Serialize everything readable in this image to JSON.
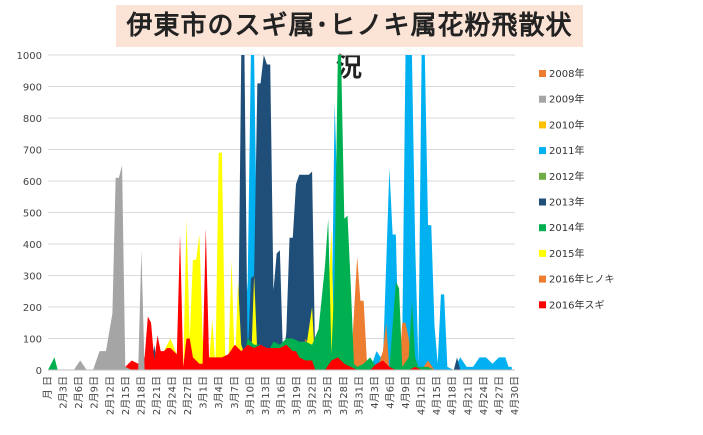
{
  "title": "伊東市のスギ属･ヒノキ属花粉飛散状況",
  "chart_data": {
    "type": "area",
    "title": "伊東市のスギ属･ヒノキ属花粉飛散状況",
    "xlabel": "",
    "ylabel": "",
    "ylim": [
      0,
      1000
    ],
    "yticks": [
      0,
      100,
      200,
      300,
      400,
      500,
      600,
      700,
      800,
      900,
      1000
    ],
    "x_tick_labels": [
      "月 日",
      "2月3日",
      "2月6日",
      "2月9日",
      "2月12日",
      "2月15日",
      "2月18日",
      "2月21日",
      "2月24日",
      "2月27日",
      "3月1日",
      "3月4日",
      "3月7日",
      "3月10日",
      "3月13日",
      "3月16日",
      "3月19日",
      "3月22日",
      "3月25日",
      "3月28日",
      "3月31日",
      "4月3日",
      "4月6日",
      "4月9日",
      "4月12日",
      "4月15日",
      "4月18日",
      "4月21日",
      "4月24日",
      "4月27日",
      "4月30日"
    ],
    "legend_position": "right",
    "grid": true,
    "series": [
      {
        "name": "2011年",
        "color": "#00b0f0",
        "points": [
          [
            46,
            0
          ],
          [
            50,
            10
          ],
          [
            52,
            5
          ],
          [
            56,
            0
          ],
          [
            60,
            0
          ],
          [
            62,
            280
          ],
          [
            63,
            1000
          ],
          [
            64,
            1000
          ],
          [
            65,
            300
          ],
          [
            66,
            0
          ],
          [
            68,
            0
          ],
          [
            70,
            260
          ],
          [
            71,
            280
          ],
          [
            72,
            80
          ],
          [
            74,
            0
          ],
          [
            76,
            0
          ],
          [
            78,
            60
          ],
          [
            80,
            80
          ],
          [
            82,
            0
          ],
          [
            84,
            100
          ],
          [
            86,
            180
          ],
          [
            88,
            60
          ],
          [
            89,
            850
          ],
          [
            90,
            500
          ],
          [
            91,
            80
          ],
          [
            92,
            0
          ],
          [
            94,
            0
          ],
          [
            96,
            30
          ],
          [
            98,
            40
          ],
          [
            100,
            0
          ],
          [
            102,
            60
          ],
          [
            104,
            30
          ],
          [
            106,
            640
          ],
          [
            107,
            430
          ],
          [
            108,
            430
          ],
          [
            109,
            10
          ],
          [
            110,
            100
          ],
          [
            111,
            1000
          ],
          [
            112,
            1000
          ],
          [
            113,
            1000
          ],
          [
            114,
            400
          ],
          [
            115,
            20
          ],
          [
            116,
            1000
          ],
          [
            117,
            1000
          ],
          [
            118,
            460
          ],
          [
            119,
            460
          ],
          [
            120,
            140
          ],
          [
            121,
            20
          ],
          [
            122,
            240
          ],
          [
            123,
            240
          ],
          [
            124,
            10
          ],
          [
            126,
            0
          ],
          [
            128,
            40
          ],
          [
            130,
            10
          ],
          [
            132,
            10
          ],
          [
            134,
            40
          ],
          [
            136,
            40
          ],
          [
            138,
            20
          ],
          [
            140,
            40
          ],
          [
            142,
            40
          ],
          [
            143,
            10
          ],
          [
            144,
            10
          ]
        ]
      },
      {
        "name": "2013年",
        "color": "#1f4e79",
        "points": [
          [
            16,
            0
          ],
          [
            17,
            30
          ],
          [
            18,
            0
          ],
          [
            32,
            0
          ],
          [
            33,
            80
          ],
          [
            34,
            0
          ],
          [
            42,
            0
          ],
          [
            43,
            210
          ],
          [
            44,
            0
          ],
          [
            58,
            0
          ],
          [
            59,
            50
          ],
          [
            60,
            1000
          ],
          [
            61,
            1000
          ],
          [
            62,
            30
          ],
          [
            63,
            290
          ],
          [
            64,
            300
          ],
          [
            65,
            910
          ],
          [
            66,
            910
          ],
          [
            67,
            1000
          ],
          [
            68,
            970
          ],
          [
            69,
            970
          ],
          [
            70,
            250
          ],
          [
            71,
            370
          ],
          [
            72,
            380
          ],
          [
            73,
            30
          ],
          [
            74,
            120
          ],
          [
            75,
            420
          ],
          [
            76,
            420
          ],
          [
            77,
            590
          ],
          [
            78,
            620
          ],
          [
            79,
            620
          ],
          [
            80,
            620
          ],
          [
            81,
            620
          ],
          [
            82,
            630
          ],
          [
            83,
            0
          ],
          [
            86,
            0
          ],
          [
            87,
            0
          ],
          [
            126,
            0
          ],
          [
            127,
            40
          ],
          [
            128,
            0
          ]
        ]
      },
      {
        "name": "2016年ヒノキ",
        "color": "#ed7d31",
        "points": [
          [
            62,
            0
          ],
          [
            63,
            40
          ],
          [
            64,
            0
          ],
          [
            70,
            0
          ],
          [
            71,
            40
          ],
          [
            72,
            0
          ],
          [
            76,
            0
          ],
          [
            78,
            30
          ],
          [
            80,
            100
          ],
          [
            81,
            70
          ],
          [
            82,
            70
          ],
          [
            84,
            90
          ],
          [
            85,
            30
          ],
          [
            86,
            40
          ],
          [
            88,
            0
          ],
          [
            90,
            0
          ],
          [
            92,
            40
          ],
          [
            94,
            0
          ],
          [
            95,
            180
          ],
          [
            96,
            360
          ],
          [
            97,
            220
          ],
          [
            98,
            220
          ],
          [
            99,
            30
          ],
          [
            100,
            0
          ],
          [
            102,
            0
          ],
          [
            104,
            60
          ],
          [
            105,
            150
          ],
          [
            106,
            0
          ],
          [
            107,
            60
          ],
          [
            108,
            70
          ],
          [
            109,
            0
          ],
          [
            110,
            150
          ],
          [
            111,
            150
          ],
          [
            112,
            100
          ],
          [
            113,
            20
          ],
          [
            114,
            0
          ],
          [
            116,
            0
          ],
          [
            118,
            30
          ],
          [
            120,
            0
          ]
        ]
      },
      {
        "name": "2015年",
        "color": "#ffff00",
        "points": [
          [
            20,
            0
          ],
          [
            22,
            10
          ],
          [
            24,
            5
          ],
          [
            26,
            0
          ],
          [
            28,
            0
          ],
          [
            30,
            20
          ],
          [
            32,
            0
          ],
          [
            34,
            0
          ],
          [
            36,
            60
          ],
          [
            38,
            100
          ],
          [
            40,
            50
          ],
          [
            42,
            0
          ],
          [
            43,
            480
          ],
          [
            44,
            100
          ],
          [
            45,
            350
          ],
          [
            46,
            350
          ],
          [
            47,
            430
          ],
          [
            48,
            100
          ],
          [
            50,
            20
          ],
          [
            51,
            160
          ],
          [
            52,
            10
          ],
          [
            53,
            690
          ],
          [
            54,
            690
          ],
          [
            55,
            50
          ],
          [
            56,
            20
          ],
          [
            57,
            350
          ],
          [
            58,
            0
          ],
          [
            59,
            280
          ],
          [
            60,
            80
          ],
          [
            62,
            20
          ],
          [
            63,
            0
          ],
          [
            64,
            300
          ],
          [
            65,
            50
          ],
          [
            66,
            30
          ],
          [
            68,
            40
          ],
          [
            70,
            40
          ],
          [
            72,
            30
          ],
          [
            74,
            40
          ],
          [
            76,
            50
          ],
          [
            78,
            50
          ],
          [
            80,
            60
          ],
          [
            82,
            200
          ],
          [
            83,
            0
          ],
          [
            86,
            0
          ],
          [
            88,
            450
          ],
          [
            89,
            20
          ],
          [
            90,
            0
          ],
          [
            92,
            30
          ],
          [
            94,
            0
          ]
        ]
      },
      {
        "name": "2014年",
        "color": "#00b050",
        "points": [
          [
            0,
            0
          ],
          [
            2,
            40
          ],
          [
            3,
            0
          ],
          [
            16,
            0
          ],
          [
            18,
            20
          ],
          [
            20,
            0
          ],
          [
            60,
            0
          ],
          [
            62,
            100
          ],
          [
            64,
            80
          ],
          [
            66,
            80
          ],
          [
            68,
            50
          ],
          [
            70,
            90
          ],
          [
            72,
            80
          ],
          [
            74,
            100
          ],
          [
            76,
            100
          ],
          [
            78,
            90
          ],
          [
            80,
            90
          ],
          [
            82,
            80
          ],
          [
            84,
            130
          ],
          [
            86,
            330
          ],
          [
            87,
            480
          ],
          [
            88,
            50
          ],
          [
            89,
            300
          ],
          [
            90,
            1000
          ],
          [
            91,
            1000
          ],
          [
            92,
            480
          ],
          [
            93,
            490
          ],
          [
            94,
            270
          ],
          [
            95,
            20
          ],
          [
            96,
            10
          ],
          [
            98,
            20
          ],
          [
            100,
            40
          ],
          [
            102,
            10
          ],
          [
            104,
            20
          ],
          [
            106,
            0
          ],
          [
            108,
            280
          ],
          [
            109,
            260
          ],
          [
            110,
            10
          ],
          [
            112,
            40
          ],
          [
            113,
            220
          ],
          [
            114,
            40
          ],
          [
            115,
            10
          ],
          [
            118,
            10
          ],
          [
            120,
            0
          ]
        ]
      },
      {
        "name": "2016年スギ",
        "color": "#ff0000",
        "points": [
          [
            20,
            0
          ],
          [
            22,
            40
          ],
          [
            24,
            10
          ],
          [
            26,
            30
          ],
          [
            28,
            20
          ],
          [
            30,
            40
          ],
          [
            31,
            170
          ],
          [
            32,
            150
          ],
          [
            33,
            30
          ],
          [
            34,
            110
          ],
          [
            35,
            60
          ],
          [
            36,
            60
          ],
          [
            37,
            70
          ],
          [
            38,
            70
          ],
          [
            40,
            50
          ],
          [
            41,
            430
          ],
          [
            42,
            10
          ],
          [
            43,
            100
          ],
          [
            44,
            100
          ],
          [
            45,
            40
          ],
          [
            46,
            30
          ],
          [
            47,
            20
          ],
          [
            48,
            20
          ],
          [
            49,
            450
          ],
          [
            50,
            40
          ],
          [
            52,
            40
          ],
          [
            54,
            40
          ],
          [
            56,
            50
          ],
          [
            58,
            80
          ],
          [
            60,
            60
          ],
          [
            62,
            80
          ],
          [
            64,
            70
          ],
          [
            66,
            80
          ],
          [
            68,
            70
          ],
          [
            70,
            70
          ],
          [
            72,
            70
          ],
          [
            74,
            80
          ],
          [
            76,
            60
          ],
          [
            77,
            60
          ],
          [
            78,
            40
          ],
          [
            80,
            30
          ],
          [
            82,
            30
          ],
          [
            83,
            0
          ],
          [
            84,
            0
          ],
          [
            86,
            0
          ],
          [
            88,
            30
          ],
          [
            90,
            40
          ],
          [
            92,
            20
          ],
          [
            94,
            10
          ],
          [
            96,
            0
          ],
          [
            100,
            0
          ],
          [
            102,
            20
          ],
          [
            104,
            30
          ],
          [
            106,
            10
          ],
          [
            108,
            0
          ],
          [
            112,
            0
          ],
          [
            114,
            10
          ],
          [
            116,
            0
          ]
        ]
      },
      {
        "name": "2009年",
        "color": "#a5a5a5",
        "points": [
          [
            8,
            0
          ],
          [
            10,
            30
          ],
          [
            12,
            0
          ],
          [
            14,
            0
          ],
          [
            16,
            60
          ],
          [
            18,
            60
          ],
          [
            20,
            180
          ],
          [
            21,
            610
          ],
          [
            22,
            610
          ],
          [
            23,
            650
          ],
          [
            24,
            10
          ],
          [
            26,
            0
          ],
          [
            28,
            0
          ],
          [
            29,
            380
          ],
          [
            30,
            0
          ]
        ]
      },
      {
        "name": "2008年",
        "color": "#ed7d31",
        "points": []
      },
      {
        "name": "2010年",
        "color": "#ffc000",
        "points": []
      },
      {
        "name": "2012年",
        "color": "#70ad47",
        "points": []
      }
    ],
    "legend_order": [
      "2008年",
      "2009年",
      "2010年",
      "2011年",
      "2012年",
      "2013年",
      "2014年",
      "2015年",
      "2016年ヒノキ",
      "2016年スギ"
    ]
  }
}
